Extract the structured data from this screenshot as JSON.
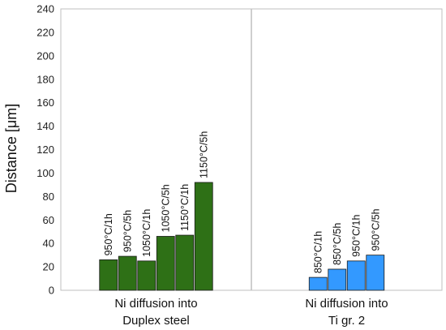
{
  "chart_data": {
    "type": "bar",
    "title": "",
    "ylabel": "Distance [μm]",
    "xlabel": "",
    "ylim": [
      0,
      240
    ],
    "yticks": [
      0,
      20,
      40,
      60,
      80,
      100,
      120,
      140,
      160,
      180,
      200,
      220,
      240
    ],
    "grid": false,
    "groups": [
      {
        "label_lines": [
          "Ni diffusion into",
          "Duplex steel"
        ],
        "color": "#2e7016",
        "bars": [
          {
            "label": "950°C/1h",
            "value": 26
          },
          {
            "label": "950°C/5h",
            "value": 29
          },
          {
            "label": "1050°C/1h",
            "value": 25
          },
          {
            "label": "1050°C/5h",
            "value": 46
          },
          {
            "label": "1150°C/1h",
            "value": 47
          },
          {
            "label": "1150°C/5h",
            "value": 92
          }
        ]
      },
      {
        "label_lines": [
          "Ni diffusion into",
          "Ti gr. 2"
        ],
        "color": "#3399ff",
        "bars": [
          {
            "label": "850°C/1h",
            "value": 11
          },
          {
            "label": "850°C/5h",
            "value": 18
          },
          {
            "label": "950°C/1h",
            "value": 25
          },
          {
            "label": "950°C/5h",
            "value": 30
          }
        ]
      }
    ]
  }
}
